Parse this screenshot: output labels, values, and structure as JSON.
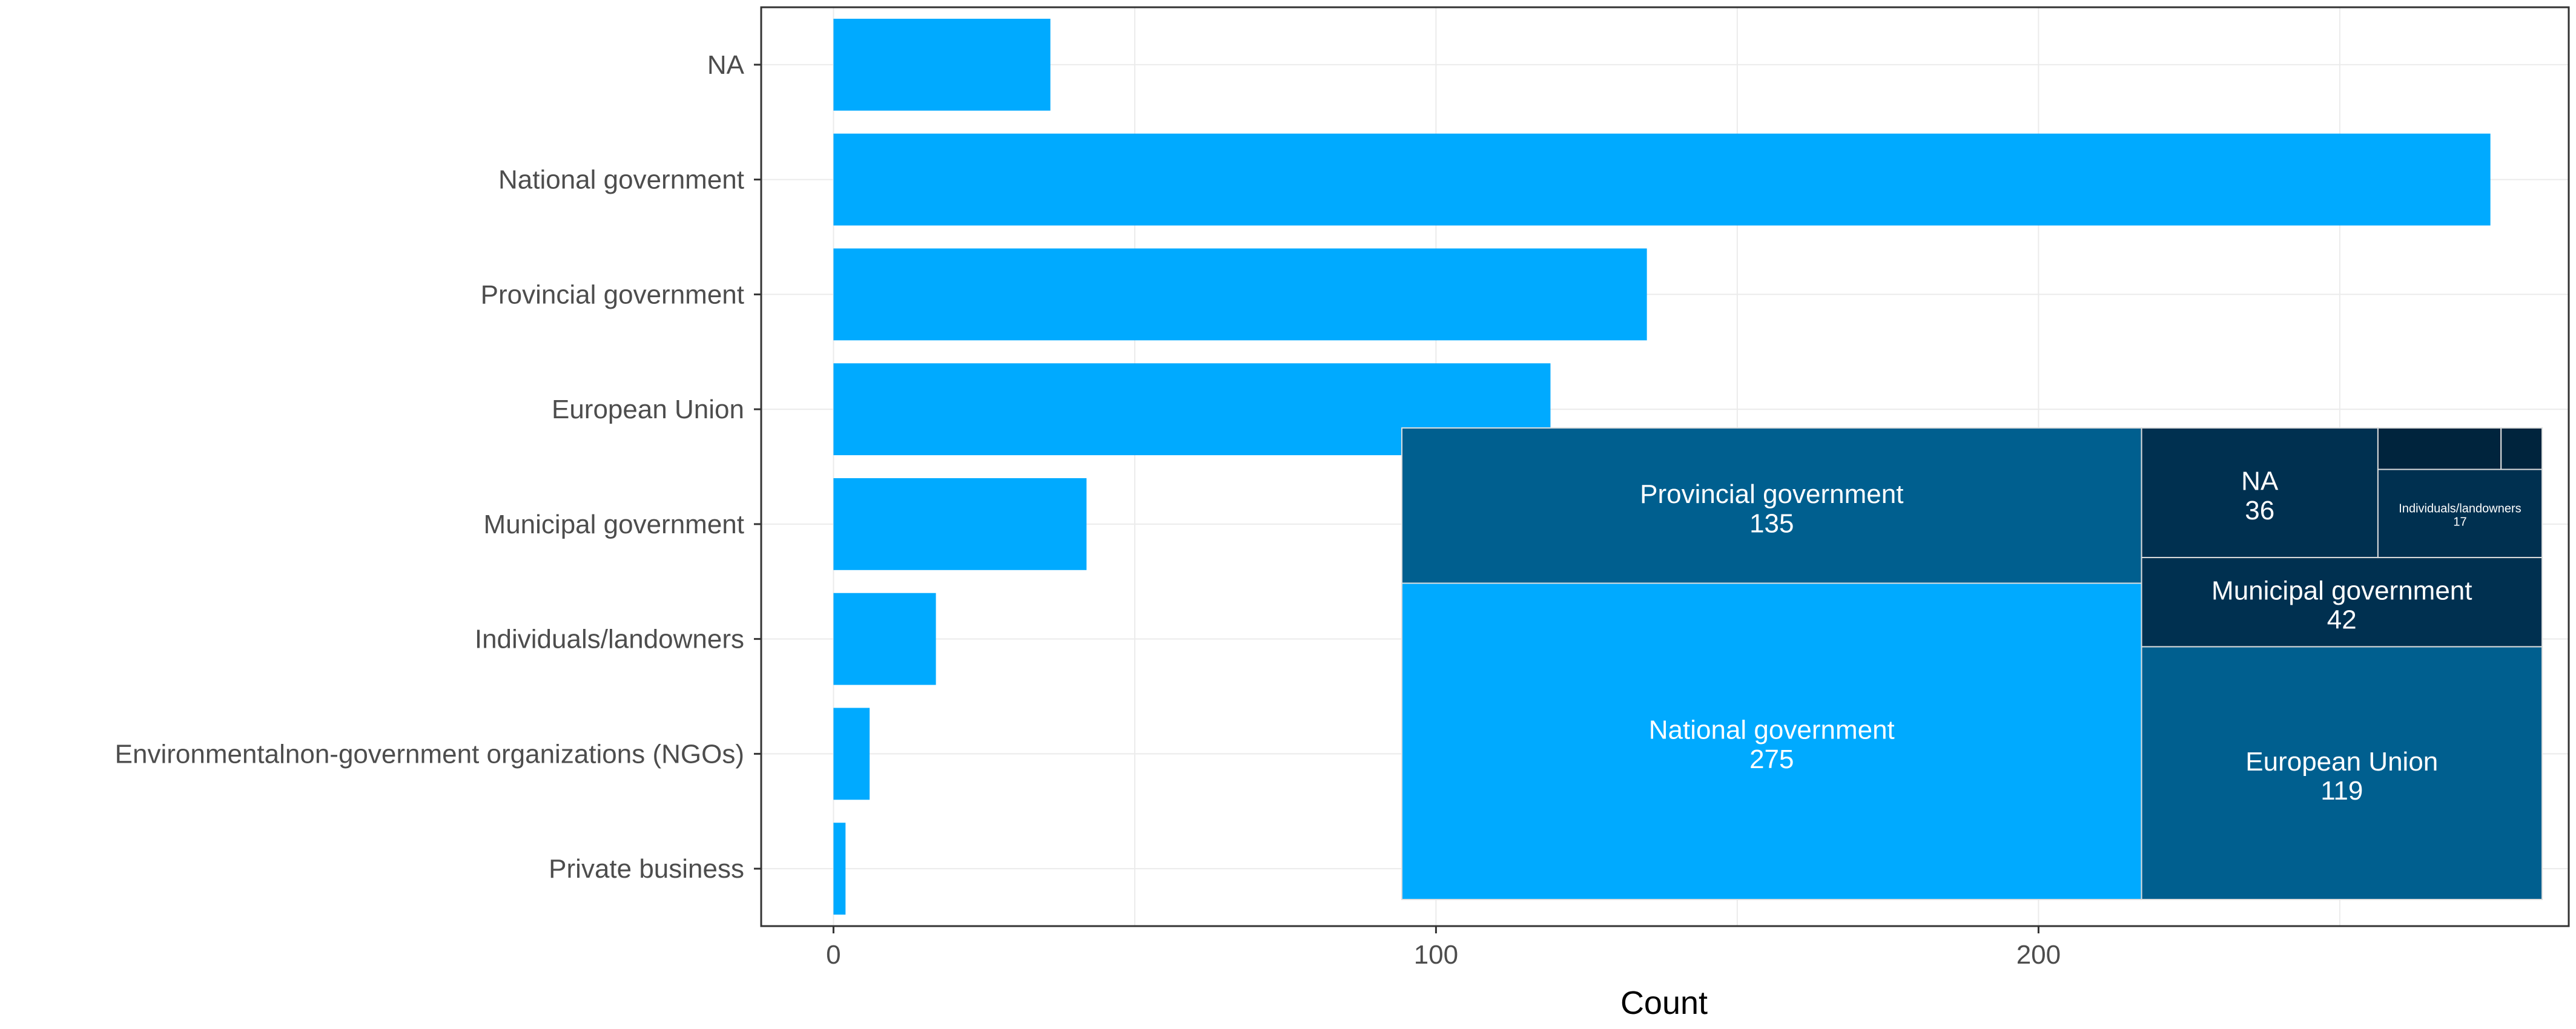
{
  "chart_data": [
    {
      "type": "bar",
      "orientation": "horizontal",
      "title": "",
      "xlabel": "Count",
      "ylabel": "",
      "xlim": [
        -12,
        288
      ],
      "xticks": [
        0,
        100,
        200
      ],
      "xtick_labels": [
        "0",
        "100",
        "200"
      ],
      "grid": true,
      "bar_color": "#00AAFF",
      "categories": [
        "NA",
        "National government",
        "Provincial government",
        "European Union",
        "Municipal government",
        "Individuals/landowners",
        "Environmentalnon-government organizations (NGOs)",
        "Private business"
      ],
      "values": [
        36,
        275,
        135,
        119,
        42,
        17,
        6,
        2
      ]
    },
    {
      "type": "treemap",
      "title": "",
      "items": [
        {
          "label": "National government",
          "value": 275,
          "value_label": "275",
          "color": "#00AAFF"
        },
        {
          "label": "Provincial government",
          "value": 135,
          "value_label": "135",
          "color": "#005F8F"
        },
        {
          "label": "European Union",
          "value": 119,
          "value_label": "119",
          "color": "#005F8F"
        },
        {
          "label": "Municipal government",
          "value": 42,
          "value_label": "42",
          "color": "#003050"
        },
        {
          "label": "NA",
          "value": 36,
          "value_label": "36",
          "color": "#003050"
        },
        {
          "label": "Individuals/landowners",
          "value": 17,
          "value_label": "17",
          "color": "#003050"
        },
        {
          "label": "",
          "value": 6,
          "value_label": "",
          "color": "#00243D"
        },
        {
          "label": "",
          "value": 2,
          "value_label": "",
          "color": "#00243D"
        }
      ]
    }
  ],
  "colors": {
    "panel_border": "#333333",
    "grid_line": "#ebebeb",
    "tile_border": "#dddddd"
  }
}
